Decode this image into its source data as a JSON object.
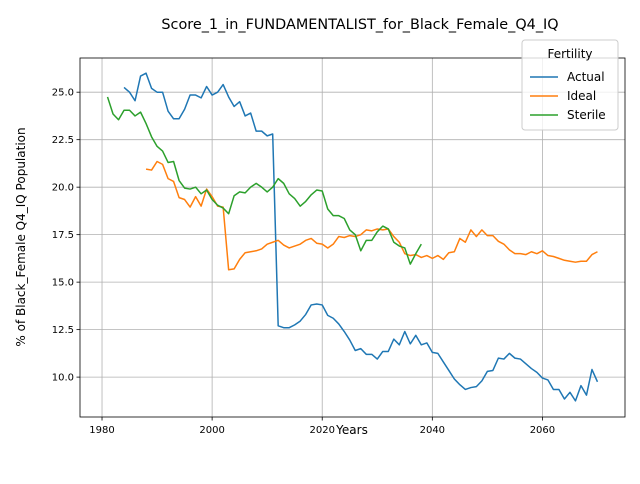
{
  "chart_data": {
    "type": "line",
    "title": "Score_1_in_FUNDAMENTALIST_for_Black_Female_Q4_IQ",
    "xlabel": "Years",
    "ylabel": "% of Black_Female Q4_IQ Population",
    "xlim": [
      1976,
      2075
    ],
    "ylim": [
      7.9,
      26.8
    ],
    "xticks": [
      1980,
      2000,
      2020,
      2040,
      2060
    ],
    "yticks": [
      10.0,
      12.5,
      15.0,
      17.5,
      20.0,
      22.5,
      25.0
    ],
    "grid": true,
    "legend": {
      "title": "Fertility",
      "placement": "top-right"
    },
    "series": [
      {
        "name": "Actual",
        "color": "#1f77b4",
        "x": [
          1984,
          1985,
          1986,
          1987,
          1988,
          1989,
          1990,
          1991,
          1992,
          1993,
          1994,
          1995,
          1996,
          1997,
          1998,
          1999,
          2000,
          2001,
          2002,
          2003,
          2004,
          2005,
          2006,
          2007,
          2008,
          2009,
          2010,
          2011,
          2012,
          2013,
          2014,
          2015,
          2016,
          2017,
          2018,
          2019,
          2020,
          2021,
          2022,
          2023,
          2024,
          2025,
          2026,
          2027,
          2028,
          2029,
          2030,
          2031,
          2032,
          2033,
          2034,
          2035,
          2036,
          2037,
          2038,
          2039,
          2040,
          2041,
          2042,
          2043,
          2044,
          2045,
          2046,
          2047,
          2048,
          2049,
          2050,
          2051,
          2052,
          2053,
          2054,
          2055,
          2056,
          2057,
          2058,
          2059,
          2060,
          2061,
          2062,
          2063,
          2064,
          2065,
          2066,
          2067,
          2068,
          2069,
          2070
        ],
        "values": [
          25.25,
          25.0,
          24.55,
          25.85,
          26.0,
          25.2,
          25.0,
          25.0,
          24.0,
          23.6,
          23.6,
          24.1,
          24.85,
          24.85,
          24.7,
          25.3,
          24.85,
          25.0,
          25.4,
          24.75,
          24.25,
          24.5,
          23.75,
          23.9,
          22.95,
          22.95,
          22.7,
          22.8,
          12.7,
          12.6,
          12.6,
          12.75,
          12.95,
          13.3,
          13.8,
          13.85,
          13.8,
          13.25,
          13.1,
          12.8,
          12.4,
          11.95,
          11.4,
          11.5,
          11.2,
          11.2,
          10.95,
          11.35,
          11.35,
          12.0,
          11.7,
          12.4,
          11.75,
          12.2,
          11.7,
          11.8,
          11.3,
          11.25,
          10.8,
          10.35,
          9.9,
          9.6,
          9.35,
          9.45,
          9.5,
          9.8,
          10.3,
          10.35,
          11.0,
          10.95,
          11.25,
          11.0,
          10.95,
          10.7,
          10.45,
          10.25,
          9.95,
          9.85,
          9.35,
          9.35,
          8.85,
          9.2,
          8.75,
          9.55,
          9.05,
          10.4,
          9.75
        ]
      },
      {
        "name": "Ideal",
        "color": "#ff7f0e",
        "x": [
          1988,
          1989,
          1990,
          1991,
          1992,
          1993,
          1994,
          1995,
          1996,
          1997,
          1998,
          1999,
          2000,
          2001,
          2002,
          2003,
          2004,
          2005,
          2006,
          2007,
          2008,
          2009,
          2010,
          2011,
          2012,
          2013,
          2014,
          2015,
          2016,
          2017,
          2018,
          2019,
          2020,
          2021,
          2022,
          2023,
          2024,
          2025,
          2026,
          2027,
          2028,
          2029,
          2030,
          2031,
          2032,
          2033,
          2034,
          2035,
          2036,
          2037,
          2038,
          2039,
          2040,
          2041,
          2042,
          2043,
          2044,
          2045,
          2046,
          2047,
          2048,
          2049,
          2050,
          2051,
          2052,
          2053,
          2054,
          2055,
          2056,
          2057,
          2058,
          2059,
          2060,
          2061,
          2062,
          2063,
          2064,
          2065,
          2066,
          2067,
          2068,
          2069,
          2070
        ],
        "values": [
          20.95,
          20.9,
          21.35,
          21.2,
          20.45,
          20.3,
          19.45,
          19.35,
          18.95,
          19.5,
          19.0,
          19.9,
          19.5,
          19.0,
          18.95,
          15.65,
          15.7,
          16.2,
          16.55,
          16.6,
          16.65,
          16.75,
          17.0,
          17.1,
          17.2,
          16.95,
          16.8,
          16.9,
          17.0,
          17.2,
          17.3,
          17.05,
          17.0,
          16.8,
          17.0,
          17.4,
          17.35,
          17.45,
          17.4,
          17.5,
          17.75,
          17.7,
          17.8,
          17.75,
          17.8,
          17.4,
          17.1,
          16.5,
          16.4,
          16.45,
          16.3,
          16.4,
          16.25,
          16.4,
          16.2,
          16.55,
          16.6,
          17.3,
          17.1,
          17.75,
          17.4,
          17.75,
          17.45,
          17.45,
          17.15,
          17.0,
          16.7,
          16.5,
          16.5,
          16.45,
          16.6,
          16.5,
          16.65,
          16.4,
          16.35,
          16.25,
          16.15,
          16.1,
          16.05,
          16.1,
          16.1,
          16.45,
          16.6
        ]
      },
      {
        "name": "Sterile",
        "color": "#2ca02c",
        "x": [
          1981,
          1982,
          1983,
          1984,
          1985,
          1986,
          1987,
          1988,
          1989,
          1990,
          1991,
          1992,
          1993,
          1994,
          1995,
          1996,
          1997,
          1998,
          1999,
          2000,
          2001,
          2002,
          2003,
          2004,
          2005,
          2006,
          2007,
          2008,
          2009,
          2010,
          2011,
          2012,
          2013,
          2014,
          2015,
          2016,
          2017,
          2018,
          2019,
          2020,
          2021,
          2022,
          2023,
          2024,
          2025,
          2026,
          2027,
          2028,
          2029,
          2030,
          2031,
          2032,
          2033,
          2034,
          2035,
          2036,
          2037,
          2038
        ],
        "values": [
          24.75,
          23.85,
          23.55,
          24.05,
          24.05,
          23.75,
          23.95,
          23.35,
          22.65,
          22.15,
          21.9,
          21.3,
          21.35,
          20.35,
          19.95,
          19.9,
          20.0,
          19.65,
          19.85,
          19.35,
          19.05,
          18.9,
          18.6,
          19.55,
          19.75,
          19.7,
          20.0,
          20.2,
          20.0,
          19.75,
          20.0,
          20.45,
          20.2,
          19.65,
          19.4,
          19.0,
          19.25,
          19.6,
          19.85,
          19.8,
          18.85,
          18.5,
          18.5,
          18.35,
          17.75,
          17.5,
          16.65,
          17.2,
          17.2,
          17.65,
          17.95,
          17.8,
          17.1,
          16.9,
          16.8,
          15.95,
          16.5,
          17.0
        ]
      }
    ]
  }
}
